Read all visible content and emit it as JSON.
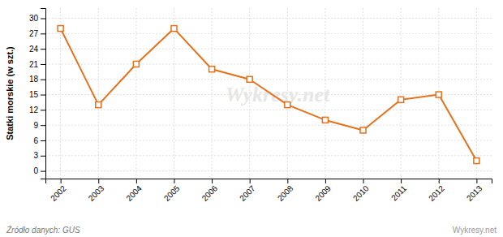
{
  "chart_data": {
    "type": "line",
    "ylabel": "Statki morskie (w szt.)",
    "x": [
      2002,
      2003,
      2004,
      2005,
      2006,
      2007,
      2008,
      2009,
      2010,
      2011,
      2012,
      2013
    ],
    "values": [
      28,
      13,
      21,
      28,
      20,
      18,
      13,
      10,
      8,
      14,
      15,
      2
    ],
    "color": "#e8701a",
    "marker": "square",
    "xlim": [
      2001.6,
      2013.4
    ],
    "xticks": [
      2002,
      2003,
      2004,
      2005,
      2006,
      2007,
      2008,
      2009,
      2010,
      2011,
      2012,
      2013
    ],
    "ylim": [
      -1.5,
      32
    ],
    "yticks": [
      0,
      3,
      6,
      9,
      12,
      15,
      18,
      21,
      24,
      27,
      30
    ],
    "grid": true,
    "annotations": [
      "Wykresy.net",
      "Źródło danych:  GUS",
      "Wykresy.net"
    ]
  }
}
